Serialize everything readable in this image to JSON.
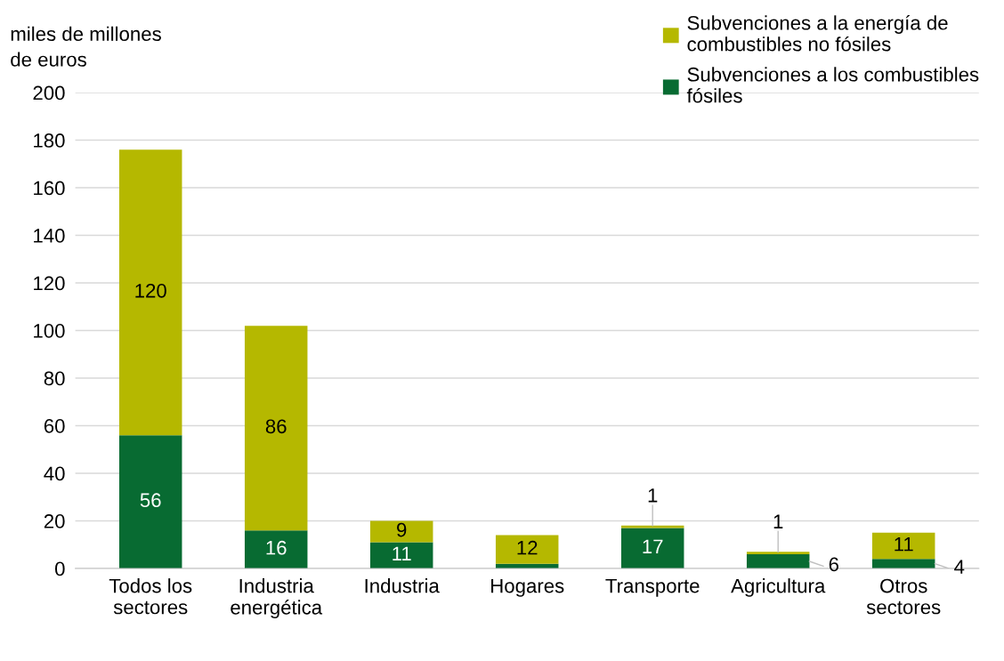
{
  "chart_data": {
    "type": "bar",
    "stacked": true,
    "ylabel": "miles de millones\nde euros",
    "categories": [
      "Todos los\nsectores",
      "Industria\nenergética",
      "Industria",
      "Hogares",
      "Transporte",
      "Agricultura",
      "Otros\nsectores"
    ],
    "series": [
      {
        "name": "Subvenciones a los combustibles\nfósiles",
        "color": "#086b32",
        "values": [
          56,
          16,
          11,
          2,
          17,
          6,
          4
        ],
        "value_labels": [
          "56",
          "16",
          "11",
          null,
          "17",
          "6",
          "4"
        ]
      },
      {
        "name": "Subvenciones a la energía de\ncombustibles no fósiles",
        "color": "#b5b800",
        "values": [
          120,
          86,
          9,
          12,
          1,
          1,
          11
        ],
        "value_labels": [
          "120",
          "86",
          "9",
          "12",
          "1",
          "1",
          "11"
        ]
      }
    ],
    "ylim": [
      0,
      200
    ],
    "yticks": [
      0,
      20,
      40,
      60,
      80,
      100,
      120,
      140,
      160,
      180,
      200
    ],
    "grid": "y",
    "legend": "top right"
  }
}
